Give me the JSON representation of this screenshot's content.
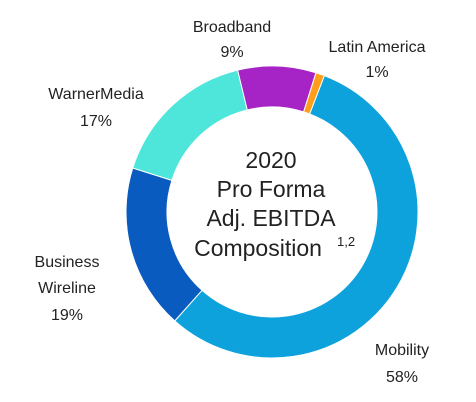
{
  "chart_data": {
    "type": "pie",
    "donut": true,
    "center_title": {
      "line1": "2020",
      "line2": "Pro Forma",
      "line3": "Adj. EBITDA",
      "line4": "Composition",
      "superscript": "1,2"
    },
    "slices": [
      {
        "label": "Mobility",
        "value": 58,
        "value_text": "58%",
        "color": "#0da2dc"
      },
      {
        "label": "Business Wireline",
        "label_lines": [
          "Business",
          "Wireline"
        ],
        "value": 19,
        "value_text": "19%",
        "color": "#0a5bbf"
      },
      {
        "label": "WarnerMedia",
        "value": 17,
        "value_text": "17%",
        "color": "#4ee6da"
      },
      {
        "label": "Broadband",
        "value": 9,
        "value_text": "9%",
        "color": "#a623c5"
      },
      {
        "label": "Latin America",
        "value": 1,
        "value_text": "1%",
        "color": "#ff9e1b"
      }
    ]
  }
}
